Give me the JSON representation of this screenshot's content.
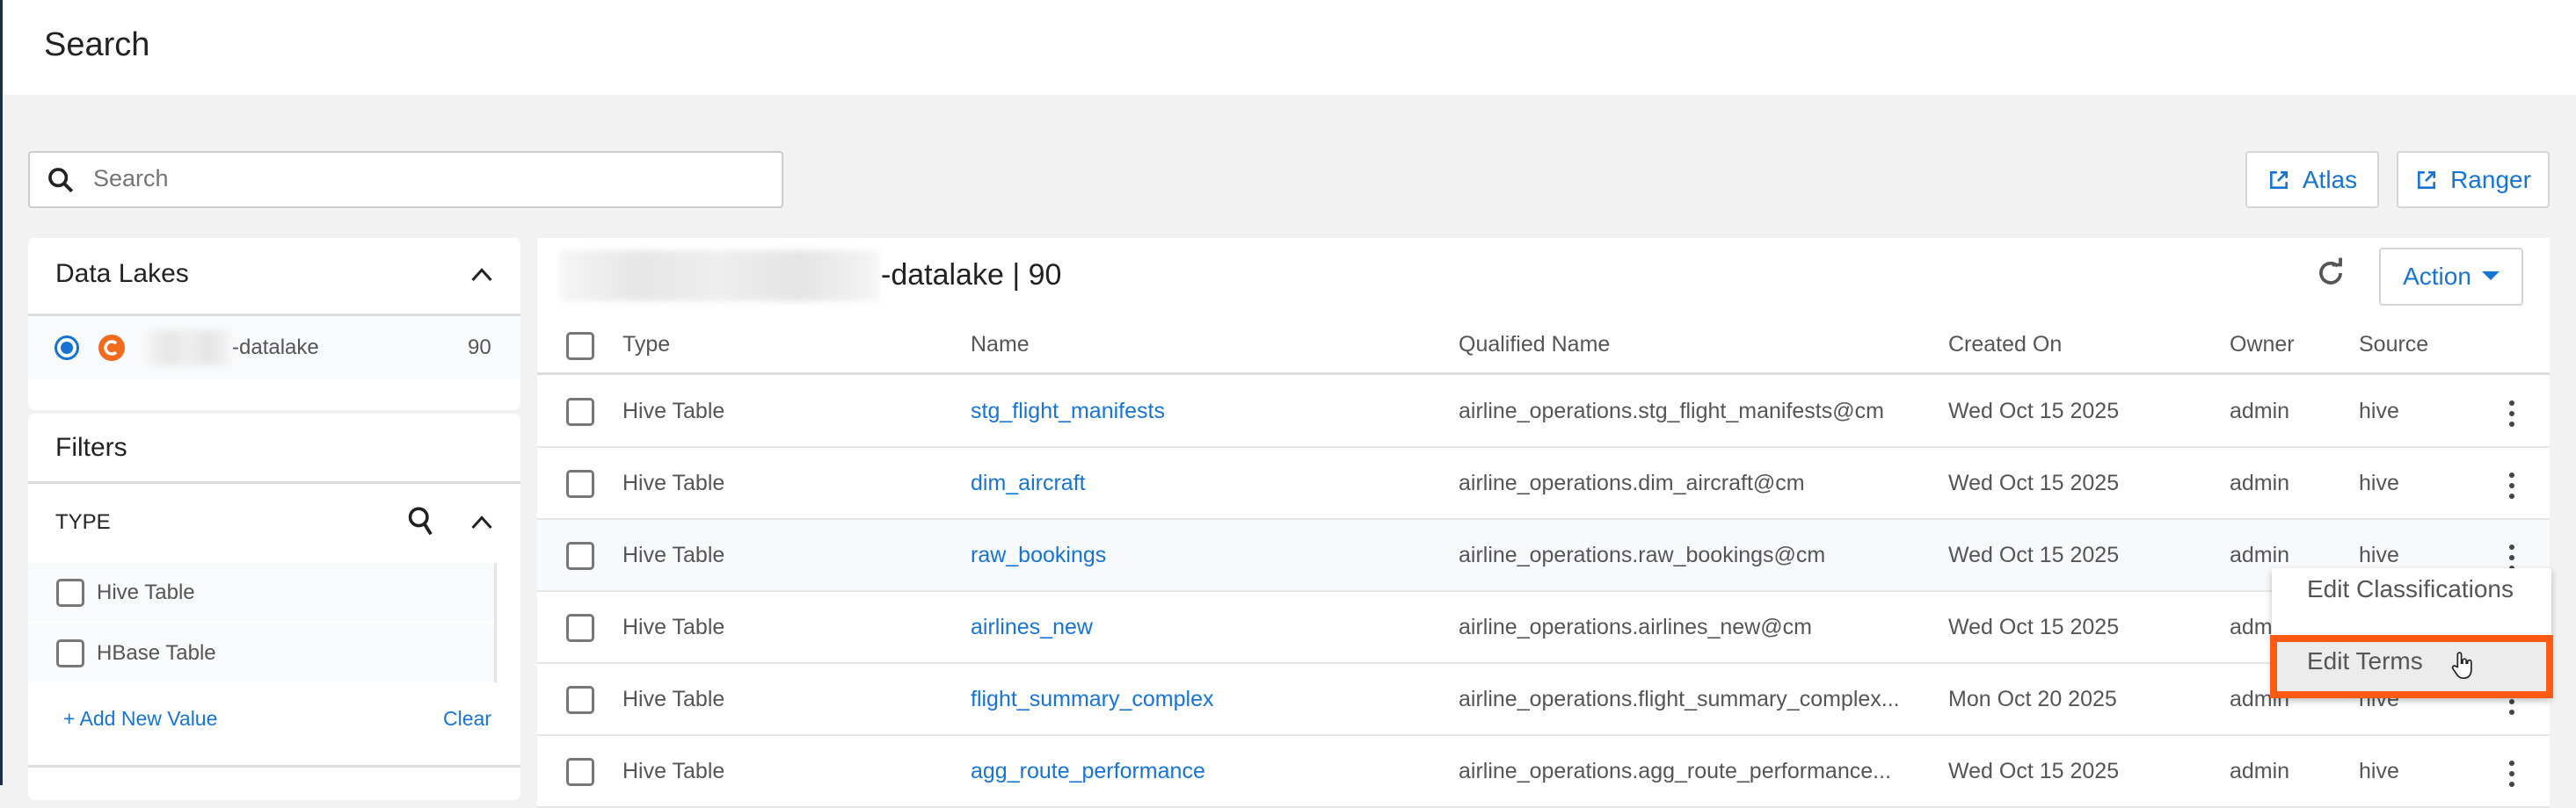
{
  "header": {
    "title": "Search"
  },
  "search": {
    "placeholder": "Search"
  },
  "external_links": [
    {
      "label": "Atlas"
    },
    {
      "label": "Ranger"
    }
  ],
  "data_lakes": {
    "title": "Data Lakes",
    "items": [
      {
        "name_suffix": "-datalake",
        "count": "90",
        "selected": true
      }
    ]
  },
  "filters": {
    "title": "Filters",
    "section": "TYPE",
    "options": [
      {
        "label": "Hive Table"
      },
      {
        "label": "HBase Table"
      }
    ],
    "add_label": "+ Add New Value",
    "clear_label": "Clear"
  },
  "main": {
    "title_suffix": "-datalake | 90",
    "action_label": "Action",
    "columns": [
      "Type",
      "Name",
      "Qualified Name",
      "Created On",
      "Owner",
      "Source"
    ],
    "rows": [
      {
        "type": "Hive Table",
        "name": "stg_flight_manifests",
        "qualified": "airline_operations.stg_flight_manifests@cm",
        "created": "Wed Oct 15 2025",
        "owner": "admin",
        "source": "hive"
      },
      {
        "type": "Hive Table",
        "name": "dim_aircraft",
        "qualified": "airline_operations.dim_aircraft@cm",
        "created": "Wed Oct 15 2025",
        "owner": "admin",
        "source": "hive"
      },
      {
        "type": "Hive Table",
        "name": "raw_bookings",
        "qualified": "airline_operations.raw_bookings@cm",
        "created": "Wed Oct 15 2025",
        "owner": "admin",
        "source": "hive"
      },
      {
        "type": "Hive Table",
        "name": "airlines_new",
        "qualified": "airline_operations.airlines_new@cm",
        "created": "Wed Oct 15 2025",
        "owner": "admin",
        "source": "hive"
      },
      {
        "type": "Hive Table",
        "name": "flight_summary_complex",
        "qualified": "airline_operations.flight_summary_complex...",
        "created": "Mon Oct 20 2025",
        "owner": "admin",
        "source": "hive"
      },
      {
        "type": "Hive Table",
        "name": "agg_route_performance",
        "qualified": "airline_operations.agg_route_performance...",
        "created": "Wed Oct 15 2025",
        "owner": "admin",
        "source": "hive"
      }
    ]
  },
  "context_menu": {
    "items": [
      "Edit Classifications",
      "Edit Terms"
    ],
    "highlighted": "Edit Terms",
    "highlight_color": "#ff5a14"
  },
  "colors": {
    "accent": "#1574d4",
    "datalake_icon": "#f26b1d"
  }
}
